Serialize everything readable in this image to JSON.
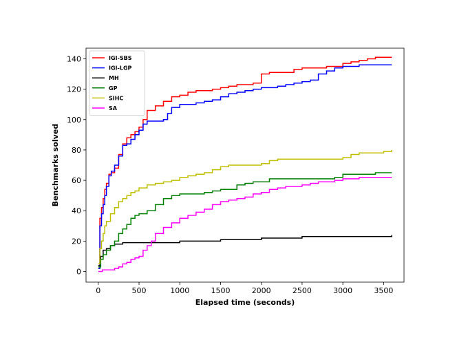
{
  "chart_data": {
    "type": "line",
    "title": "",
    "xlabel": "Elapsed time (seconds)",
    "ylabel": "Benchmarks solved",
    "xlim": [
      -150,
      3750
    ],
    "ylim": [
      -7,
      147
    ],
    "xticks": [
      0,
      500,
      1000,
      1500,
      2000,
      2500,
      3000,
      3500
    ],
    "yticks": [
      0,
      20,
      40,
      60,
      80,
      100,
      120,
      140
    ],
    "grid": false,
    "legend_position": "top-left",
    "series": [
      {
        "name": "IGI-SBS",
        "color": "#ff0000",
        "x": [
          0,
          20,
          40,
          60,
          80,
          100,
          130,
          160,
          200,
          250,
          300,
          350,
          400,
          450,
          500,
          550,
          600,
          700,
          800,
          900,
          1000,
          1100,
          1200,
          1300,
          1400,
          1500,
          1600,
          1700,
          1800,
          1900,
          2000,
          2100,
          2200,
          2300,
          2400,
          2500,
          2600,
          2700,
          2800,
          2900,
          3000,
          3100,
          3200,
          3300,
          3400,
          3600
        ],
        "y": [
          2,
          35,
          42,
          48,
          54,
          58,
          64,
          65,
          68,
          77,
          84,
          88,
          90,
          92,
          95,
          100,
          106,
          109,
          112,
          115,
          116,
          118,
          119,
          119,
          120,
          121,
          122,
          123,
          123,
          124,
          130,
          131,
          131,
          131,
          133,
          134,
          134,
          134,
          135,
          135,
          137,
          138,
          139,
          140,
          141,
          141
        ]
      },
      {
        "name": "IGI-LGP",
        "color": "#0000ff",
        "x": [
          0,
          20,
          40,
          60,
          80,
          100,
          130,
          160,
          200,
          250,
          300,
          350,
          400,
          450,
          500,
          550,
          600,
          700,
          800,
          850,
          900,
          1000,
          1100,
          1200,
          1300,
          1400,
          1500,
          1600,
          1700,
          1800,
          1900,
          2000,
          2100,
          2200,
          2300,
          2400,
          2500,
          2600,
          2700,
          2800,
          2900,
          3000,
          3100,
          3200,
          3300,
          3400,
          3600
        ],
        "y": [
          2,
          30,
          38,
          44,
          50,
          56,
          63,
          66,
          70,
          76,
          83,
          84,
          87,
          90,
          93,
          97,
          99,
          99,
          100,
          104,
          108,
          110,
          110,
          111,
          112,
          113,
          115,
          117,
          118,
          119,
          120,
          121,
          121,
          122,
          123,
          124,
          125,
          126,
          130,
          132,
          134,
          135,
          135,
          136,
          136,
          136,
          136
        ]
      },
      {
        "name": "MH",
        "color": "#000000",
        "x": [
          0,
          30,
          60,
          100,
          150,
          200,
          300,
          500,
          800,
          1000,
          1200,
          1500,
          1800,
          2000,
          2400,
          2500,
          3000,
          3500,
          3580,
          3600
        ],
        "y": [
          4,
          10,
          14,
          15,
          17,
          18,
          19,
          19,
          19,
          20,
          20,
          21,
          21,
          22,
          22,
          23,
          23,
          23,
          23,
          24
        ]
      },
      {
        "name": "GP",
        "color": "#008000",
        "x": [
          0,
          30,
          60,
          100,
          150,
          200,
          250,
          300,
          350,
          400,
          450,
          500,
          600,
          700,
          800,
          900,
          1000,
          1100,
          1200,
          1300,
          1400,
          1500,
          1700,
          1800,
          1900,
          2000,
          2100,
          2200,
          2400,
          2500,
          2700,
          2900,
          3000,
          3100,
          3300,
          3400,
          3600
        ],
        "y": [
          3,
          8,
          11,
          14,
          17,
          20,
          25,
          28,
          31,
          35,
          37,
          38,
          40,
          44,
          48,
          50,
          51,
          51,
          51,
          52,
          53,
          54,
          57,
          58,
          59,
          59,
          61,
          61,
          61,
          61,
          61,
          62,
          64,
          64,
          64,
          65,
          65
        ]
      },
      {
        "name": "SIHC",
        "color": "#bfbf00",
        "x": [
          0,
          20,
          40,
          60,
          80,
          100,
          150,
          200,
          250,
          300,
          350,
          400,
          450,
          500,
          600,
          700,
          800,
          900,
          1000,
          1100,
          1200,
          1300,
          1400,
          1500,
          1600,
          1800,
          2000,
          2100,
          2200,
          2500,
          2800,
          3000,
          3100,
          3200,
          3400,
          3500,
          3600
        ],
        "y": [
          5,
          15,
          20,
          25,
          30,
          33,
          38,
          42,
          46,
          48,
          50,
          52,
          53,
          55,
          57,
          58,
          59,
          60,
          62,
          63,
          64,
          65,
          67,
          69,
          70,
          70,
          71,
          73,
          74,
          74,
          74,
          75,
          77,
          78,
          78,
          79,
          80
        ]
      },
      {
        "name": "SA",
        "color": "#ff00ff",
        "x": [
          0,
          50,
          100,
          150,
          200,
          250,
          300,
          350,
          400,
          450,
          500,
          550,
          600,
          650,
          700,
          800,
          900,
          1000,
          1100,
          1200,
          1300,
          1400,
          1500,
          1600,
          1700,
          1800,
          1900,
          2000,
          2100,
          2200,
          2300,
          2400,
          2500,
          2600,
          2700,
          2800,
          2900,
          3000,
          3200,
          3400,
          3600
        ],
        "y": [
          0,
          1,
          1,
          1,
          2,
          3,
          5,
          6,
          8,
          9,
          10,
          14,
          17,
          20,
          25,
          29,
          32,
          35,
          37,
          39,
          41,
          44,
          46,
          47,
          48,
          49,
          51,
          52,
          54,
          55,
          56,
          56,
          57,
          58,
          59,
          59,
          60,
          61,
          62,
          62,
          62
        ]
      }
    ]
  }
}
